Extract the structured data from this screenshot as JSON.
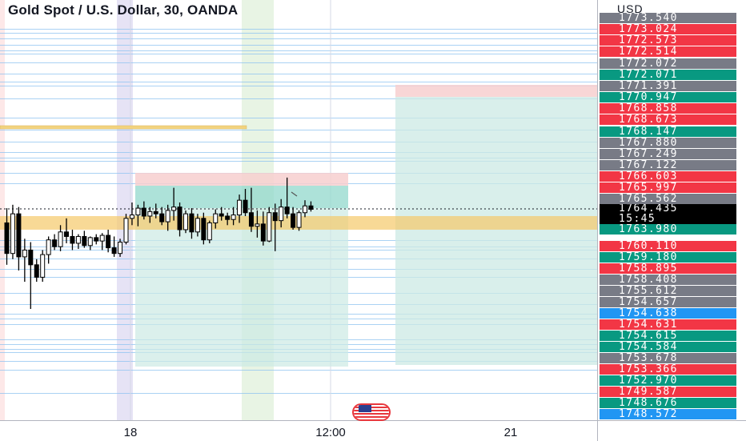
{
  "header": {
    "title": "Gold Spot / U.S. Dollar, 30, OANDA"
  },
  "price_scale": {
    "currency": "USD",
    "labels": [
      {
        "text": "1773.540",
        "color": "#787b86"
      },
      {
        "text": "1773.024",
        "color": "#f23645"
      },
      {
        "text": "1772.573",
        "color": "#f23645"
      },
      {
        "text": "1772.514",
        "color": "#f23645"
      },
      {
        "text": "1772.072",
        "color": "#787b86"
      },
      {
        "text": "1772.071",
        "color": "#089981"
      },
      {
        "text": "1771.391",
        "color": "#787b86"
      },
      {
        "text": "1770.947",
        "color": "#089981"
      },
      {
        "text": "1768.858",
        "color": "#f23645"
      },
      {
        "text": "1768.673",
        "color": "#f23645"
      },
      {
        "text": "1768.147",
        "color": "#089981"
      },
      {
        "text": "1767.880",
        "color": "#787b86"
      },
      {
        "text": "1767.249",
        "color": "#787b86"
      },
      {
        "text": "1767.122",
        "color": "#787b86"
      },
      {
        "text": "1766.603",
        "color": "#f23645"
      },
      {
        "text": "1765.997",
        "color": "#f23645"
      },
      {
        "text": "1765.562",
        "color": "#787b86"
      }
    ],
    "current": {
      "price": "1764.435",
      "countdown": "15:45",
      "color": "#000000"
    },
    "labels_lower": [
      {
        "text": "1763.980",
        "color": "#089981"
      },
      {
        "text": "1760.110",
        "color": "#f23645"
      },
      {
        "text": "1759.180",
        "color": "#089981"
      },
      {
        "text": "1758.895",
        "color": "#f23645"
      },
      {
        "text": "1758.408",
        "color": "#787b86"
      },
      {
        "text": "1755.612",
        "color": "#787b86"
      },
      {
        "text": "1754.657",
        "color": "#787b86"
      },
      {
        "text": "1754.638",
        "color": "#2196f3"
      },
      {
        "text": "1754.631",
        "color": "#f23645"
      },
      {
        "text": "1754.615",
        "color": "#089981"
      },
      {
        "text": "1754.584",
        "color": "#089981"
      },
      {
        "text": "1753.678",
        "color": "#787b86"
      },
      {
        "text": "1753.366",
        "color": "#f23645"
      },
      {
        "text": "1752.970",
        "color": "#089981"
      },
      {
        "text": "1749.587",
        "color": "#f23645"
      },
      {
        "text": "1748.676",
        "color": "#089981"
      },
      {
        "text": "1748.572",
        "color": "#2196f3"
      }
    ]
  },
  "time_axis": {
    "ticks": [
      "18",
      "12:00",
      "21"
    ]
  },
  "chart_data": {
    "type": "candlestick",
    "symbol": "XAUUSD",
    "timeframe": "30",
    "current_price": 1764.435,
    "x_ticks": [
      "18",
      "12:00",
      "21"
    ],
    "candles": [
      {
        "o": 1763.2,
        "h": 1764.5,
        "l": 1759.5,
        "c": 1760.5
      },
      {
        "o": 1760.5,
        "h": 1764.8,
        "l": 1760.0,
        "c": 1764.0
      },
      {
        "o": 1764.0,
        "h": 1764.6,
        "l": 1759.0,
        "c": 1760.2
      },
      {
        "o": 1760.2,
        "h": 1761.8,
        "l": 1758.0,
        "c": 1760.8
      },
      {
        "o": 1760.8,
        "h": 1761.5,
        "l": 1755.6,
        "c": 1759.5
      },
      {
        "o": 1759.5,
        "h": 1760.0,
        "l": 1758.0,
        "c": 1758.4
      },
      {
        "o": 1758.4,
        "h": 1760.8,
        "l": 1758.0,
        "c": 1760.4
      },
      {
        "o": 1760.4,
        "h": 1762.0,
        "l": 1759.6,
        "c": 1761.7
      },
      {
        "o": 1761.7,
        "h": 1762.2,
        "l": 1760.8,
        "c": 1761.1
      },
      {
        "o": 1761.1,
        "h": 1763.0,
        "l": 1760.7,
        "c": 1762.4
      },
      {
        "o": 1762.4,
        "h": 1763.6,
        "l": 1761.4,
        "c": 1762.0
      },
      {
        "o": 1762.0,
        "h": 1762.6,
        "l": 1760.8,
        "c": 1761.4
      },
      {
        "o": 1761.4,
        "h": 1762.2,
        "l": 1760.9,
        "c": 1762.0
      },
      {
        "o": 1762.0,
        "h": 1762.5,
        "l": 1761.0,
        "c": 1761.2
      },
      {
        "o": 1761.2,
        "h": 1762.0,
        "l": 1760.8,
        "c": 1761.9
      },
      {
        "o": 1761.9,
        "h": 1762.2,
        "l": 1761.3,
        "c": 1761.6
      },
      {
        "o": 1761.6,
        "h": 1762.3,
        "l": 1760.8,
        "c": 1762.1
      },
      {
        "o": 1762.1,
        "h": 1762.6,
        "l": 1760.6,
        "c": 1761.0
      },
      {
        "o": 1761.0,
        "h": 1762.0,
        "l": 1760.2,
        "c": 1760.5
      },
      {
        "o": 1760.5,
        "h": 1761.8,
        "l": 1760.2,
        "c": 1761.5
      },
      {
        "o": 1761.5,
        "h": 1764.0,
        "l": 1761.3,
        "c": 1763.6
      },
      {
        "o": 1763.6,
        "h": 1765.0,
        "l": 1763.0,
        "c": 1763.9
      },
      {
        "o": 1763.9,
        "h": 1764.8,
        "l": 1762.9,
        "c": 1764.5
      },
      {
        "o": 1764.5,
        "h": 1765.1,
        "l": 1763.5,
        "c": 1763.8
      },
      {
        "o": 1763.8,
        "h": 1764.6,
        "l": 1763.2,
        "c": 1764.2
      },
      {
        "o": 1764.2,
        "h": 1764.9,
        "l": 1763.6,
        "c": 1764.0
      },
      {
        "o": 1764.0,
        "h": 1764.6,
        "l": 1763.0,
        "c": 1763.3
      },
      {
        "o": 1763.3,
        "h": 1764.8,
        "l": 1762.5,
        "c": 1764.3
      },
      {
        "o": 1764.3,
        "h": 1766.3,
        "l": 1763.4,
        "c": 1764.6
      },
      {
        "o": 1764.6,
        "h": 1765.0,
        "l": 1762.0,
        "c": 1762.6
      },
      {
        "o": 1762.6,
        "h": 1764.3,
        "l": 1762.3,
        "c": 1764.0
      },
      {
        "o": 1764.0,
        "h": 1764.5,
        "l": 1761.8,
        "c": 1762.4
      },
      {
        "o": 1762.4,
        "h": 1764.0,
        "l": 1762.0,
        "c": 1763.6
      },
      {
        "o": 1763.6,
        "h": 1764.1,
        "l": 1761.3,
        "c": 1761.7
      },
      {
        "o": 1761.7,
        "h": 1763.4,
        "l": 1761.4,
        "c": 1763.2
      },
      {
        "o": 1763.2,
        "h": 1764.4,
        "l": 1762.7,
        "c": 1764.0
      },
      {
        "o": 1764.0,
        "h": 1764.6,
        "l": 1763.4,
        "c": 1763.8
      },
      {
        "o": 1763.8,
        "h": 1764.1,
        "l": 1763.0,
        "c": 1763.5
      },
      {
        "o": 1763.5,
        "h": 1764.6,
        "l": 1763.0,
        "c": 1763.9
      },
      {
        "o": 1763.9,
        "h": 1765.7,
        "l": 1763.2,
        "c": 1765.2
      },
      {
        "o": 1765.2,
        "h": 1766.2,
        "l": 1763.8,
        "c": 1764.1
      },
      {
        "o": 1764.1,
        "h": 1766.3,
        "l": 1762.4,
        "c": 1762.9
      },
      {
        "o": 1762.9,
        "h": 1764.3,
        "l": 1761.9,
        "c": 1763.1
      },
      {
        "o": 1763.1,
        "h": 1764.2,
        "l": 1761.2,
        "c": 1761.6
      },
      {
        "o": 1761.6,
        "h": 1764.6,
        "l": 1761.5,
        "c": 1764.1
      },
      {
        "o": 1764.1,
        "h": 1764.9,
        "l": 1760.7,
        "c": 1763.4
      },
      {
        "o": 1763.4,
        "h": 1765.3,
        "l": 1762.8,
        "c": 1764.6
      },
      {
        "o": 1764.6,
        "h": 1767.2,
        "l": 1763.6,
        "c": 1764.0
      },
      {
        "o": 1764.0,
        "h": 1764.6,
        "l": 1762.6,
        "c": 1762.8
      },
      {
        "o": 1762.8,
        "h": 1764.3,
        "l": 1762.5,
        "c": 1764.1
      },
      {
        "o": 1764.1,
        "h": 1765.2,
        "l": 1763.7,
        "c": 1764.7
      },
      {
        "o": 1764.7,
        "h": 1765.1,
        "l": 1764.2,
        "c": 1764.4
      }
    ],
    "positions": [
      {
        "type": "long",
        "entry": 1764.0,
        "stop": 1755.0,
        "target": 1765.9,
        "stop_zone_top": 1766.7
      },
      {
        "type": "long",
        "entry": 1764.0,
        "stop": 1755.2,
        "target": 1771.6,
        "stop_zone_top": 1772.5
      }
    ],
    "zones": [
      {
        "type": "support",
        "from": 1762.6,
        "to": 1763.8,
        "color": "#f5c96a"
      }
    ],
    "lines": [
      1768.5
    ]
  }
}
